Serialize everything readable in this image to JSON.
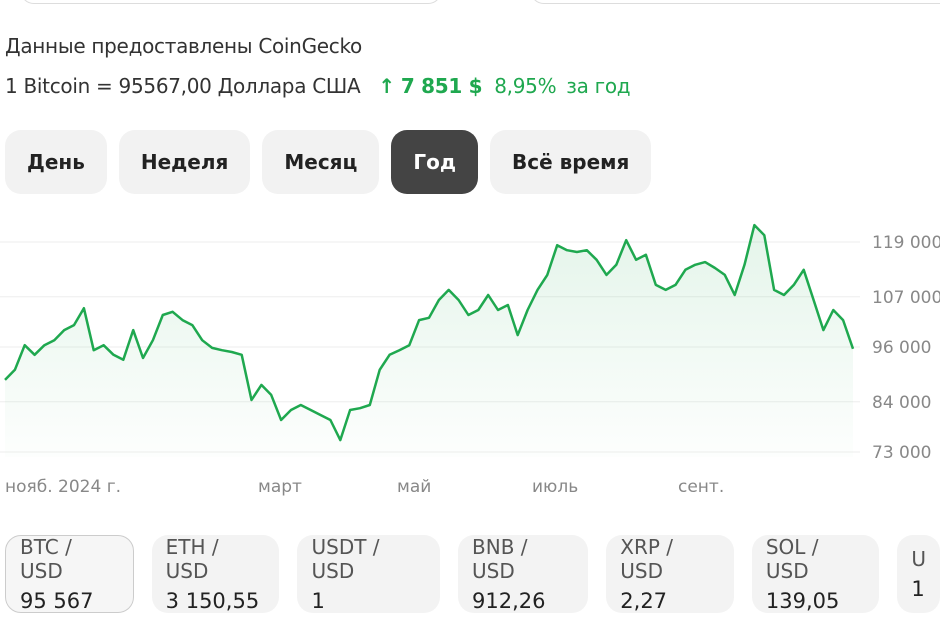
{
  "source_text": "Данные предоставлены CoinGecko",
  "rate": {
    "text": "1 Bitcoin = 95567,00 Доллара США",
    "arrow": "↑",
    "change": "7 851 $",
    "percent": "8,95%",
    "period": "за год",
    "accent_color": "#1fa84f"
  },
  "tabs": [
    {
      "label": "День",
      "active": false
    },
    {
      "label": "Неделя",
      "active": false
    },
    {
      "label": "Месяц",
      "active": false
    },
    {
      "label": "Год",
      "active": true
    },
    {
      "label": "Всё время",
      "active": false
    }
  ],
  "chart_data": {
    "type": "area",
    "line_color": "#1fa84f",
    "y_ticks": [
      "119 000",
      "107 000",
      "96 000",
      "84 000",
      "73 000"
    ],
    "x_ticks": [
      "нояб. 2024 г.",
      "март",
      "май",
      "июль",
      "сент."
    ],
    "ylim": [
      73000,
      119000
    ],
    "grid": true,
    "values": [
      88800,
      91000,
      96400,
      94300,
      96400,
      97500,
      99700,
      100800,
      104500,
      95300,
      96400,
      94300,
      93200,
      99700,
      93600,
      97500,
      103000,
      103700,
      101900,
      100800,
      97500,
      95800,
      95300,
      94900,
      94300,
      84400,
      87700,
      85500,
      80000,
      82200,
      83300,
      82200,
      81100,
      80000,
      75600,
      82200,
      82600,
      83300,
      91000,
      94300,
      95300,
      96400,
      101900,
      102400,
      106300,
      108500,
      106300,
      103000,
      104100,
      107400,
      104100,
      105200,
      98600,
      104100,
      108500,
      111800,
      118300,
      117200,
      116800,
      117200,
      115100,
      111800,
      114000,
      119400,
      115100,
      116200,
      109600,
      108500,
      109600,
      112900,
      114000,
      114600,
      113300,
      111800,
      107400,
      114000,
      122700,
      120500,
      108500,
      107400,
      109600,
      112900,
      106300,
      99700,
      104100,
      101900,
      95600
    ]
  },
  "tickers": [
    {
      "label": "BTC / USD",
      "value": "95 567",
      "selected": true
    },
    {
      "label": "ETH / USD",
      "value": "3 150,55"
    },
    {
      "label": "USDT / USD",
      "value": "1"
    },
    {
      "label": "BNB / USD",
      "value": "912,26"
    },
    {
      "label": "XRP / USD",
      "value": "2,27"
    },
    {
      "label": "SOL / USD",
      "value": "139,05"
    },
    {
      "label": "U",
      "value": "1"
    }
  ]
}
